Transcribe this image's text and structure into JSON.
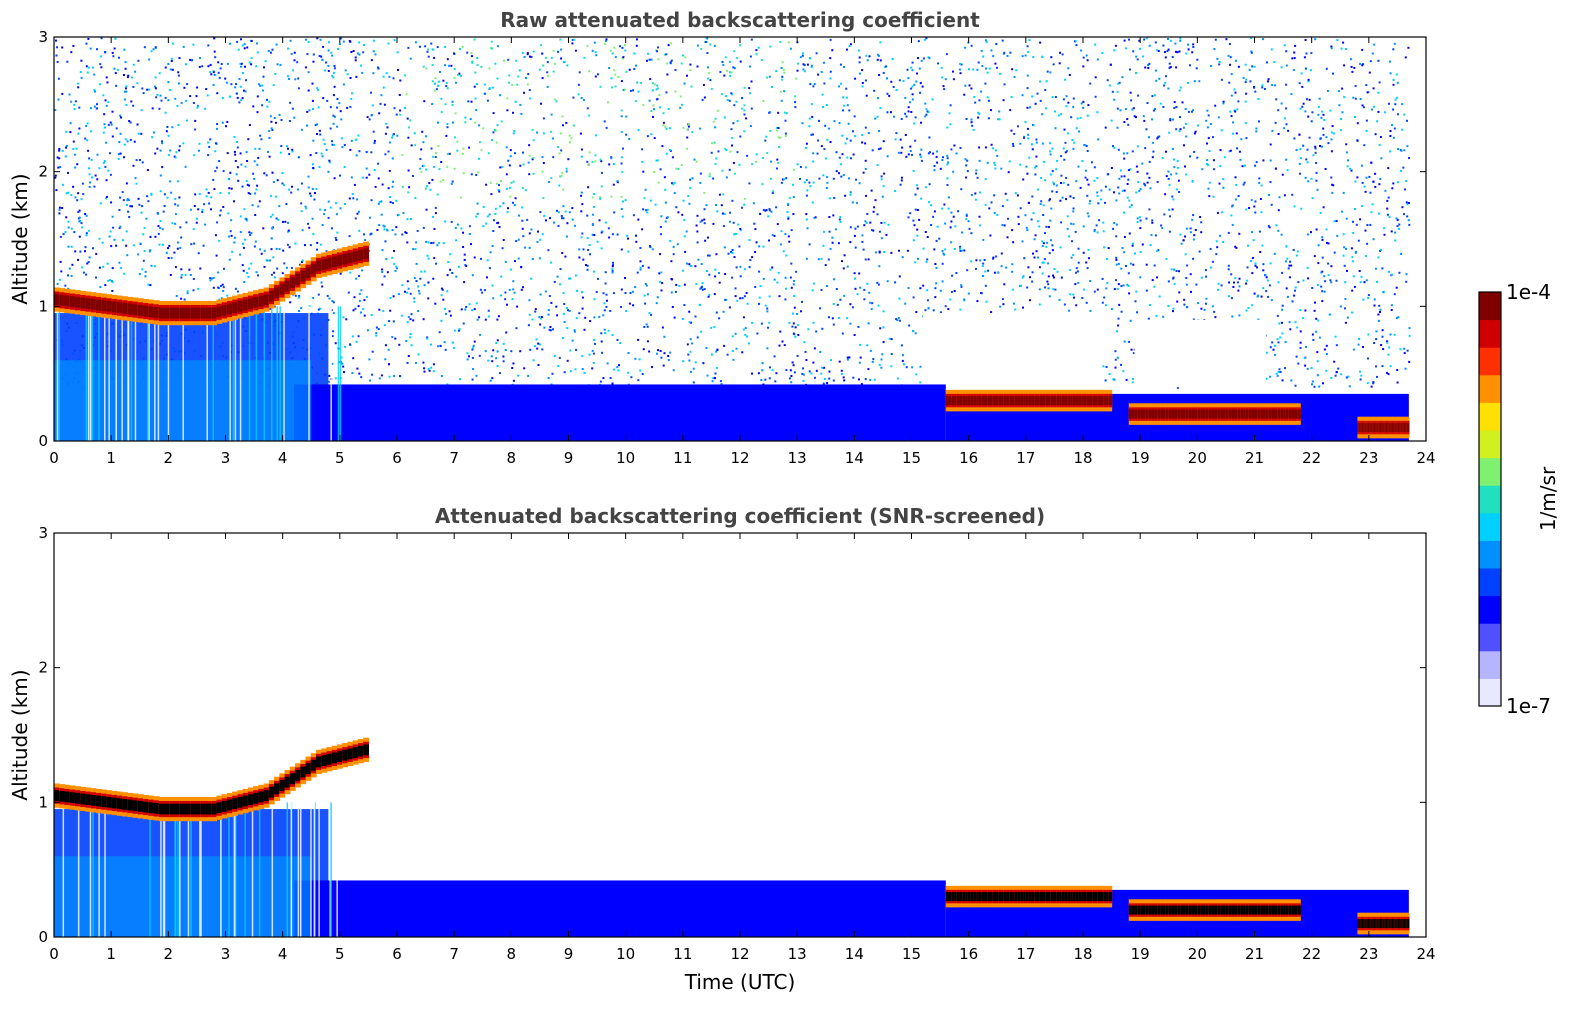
{
  "chart_data": [
    {
      "type": "heatmap",
      "title": "Raw attenuated backscattering coefficient",
      "xlabel": "",
      "ylabel": "Altitude (km)",
      "xlim": [
        0,
        24
      ],
      "ylim": [
        0,
        3
      ],
      "xticks": [
        "0",
        "1",
        "2",
        "3",
        "4",
        "5",
        "6",
        "7",
        "8",
        "9",
        "10",
        "11",
        "12",
        "13",
        "14",
        "15",
        "16",
        "17",
        "18",
        "19",
        "20",
        "21",
        "22",
        "23",
        "24"
      ],
      "yticks": [
        "0",
        "1",
        "2",
        "3"
      ],
      "features": [
        {
          "name": "cloud layer",
          "time_start": 0,
          "time_end": 5.5,
          "altitude_km": [
            1.05,
            1.0,
            0.95,
            0.95,
            1.05,
            1.3,
            1.4
          ]
        },
        {
          "name": "low cloud",
          "time_start": 15.6,
          "time_end": 18.5,
          "altitude_km": [
            0.3,
            0.3
          ]
        },
        {
          "name": "low cloud",
          "time_start": 18.8,
          "time_end": 21.8,
          "altitude_km": [
            0.2,
            0.2
          ]
        },
        {
          "name": "low cloud",
          "time_start": 22.8,
          "time_end": 23.7,
          "altitude_km": [
            0.1,
            0.1
          ]
        }
      ],
      "noise": true,
      "grid": false
    },
    {
      "type": "heatmap",
      "title": "Attenuated backscattering coefficient (SNR-screened)",
      "xlabel": "Time (UTC)",
      "ylabel": "Altitude (km)",
      "xlim": [
        0,
        24
      ],
      "ylim": [
        0,
        3
      ],
      "xticks": [
        "0",
        "1",
        "2",
        "3",
        "4",
        "5",
        "6",
        "7",
        "8",
        "9",
        "10",
        "11",
        "12",
        "13",
        "14",
        "15",
        "16",
        "17",
        "18",
        "19",
        "20",
        "21",
        "22",
        "23",
        "24"
      ],
      "yticks": [
        "0",
        "1",
        "2",
        "3"
      ],
      "features": [
        {
          "name": "cloud layer",
          "time_start": 0,
          "time_end": 5.5,
          "altitude_km": [
            1.05,
            1.0,
            0.95,
            0.95,
            1.05,
            1.3,
            1.4
          ]
        },
        {
          "name": "low cloud",
          "time_start": 15.6,
          "time_end": 18.5,
          "altitude_km": [
            0.3,
            0.3
          ]
        },
        {
          "name": "low cloud",
          "time_start": 18.8,
          "time_end": 21.8,
          "altitude_km": [
            0.2,
            0.2
          ]
        },
        {
          "name": "low cloud",
          "time_start": 22.8,
          "time_end": 23.7,
          "altitude_km": [
            0.1,
            0.1
          ]
        }
      ],
      "noise": false,
      "grid": false
    }
  ],
  "colorbar": {
    "label": "1/m/sr",
    "max_label": "1e-4",
    "min_label": "1e-7",
    "colors": [
      "#e8e8ff",
      "#b4b4ff",
      "#5050ff",
      "#0000ff",
      "#0040ff",
      "#0090ff",
      "#00d0ff",
      "#20e0c0",
      "#80f070",
      "#d0f020",
      "#ffe000",
      "#ff9000",
      "#ff3000",
      "#d00000",
      "#800000"
    ]
  }
}
